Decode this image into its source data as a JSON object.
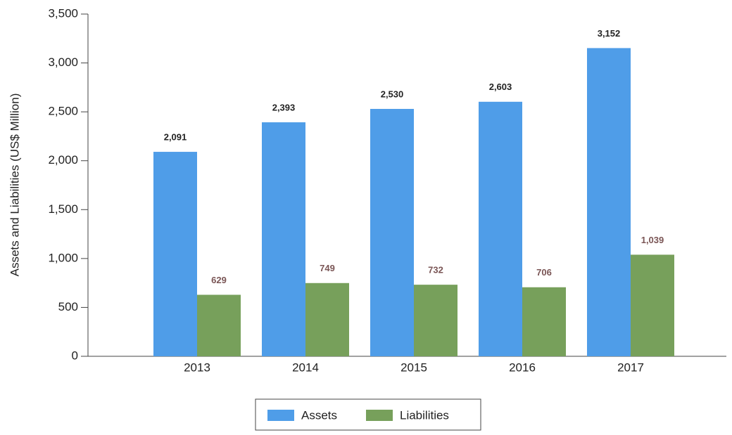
{
  "chart_data": {
    "type": "bar",
    "y_label": "Assets and Liabilities (US$ Million)",
    "categories": [
      "2013",
      "2014",
      "2015",
      "2016",
      "2017"
    ],
    "series": [
      {
        "name": "Assets",
        "color": "#4f9de8",
        "values": [
          2091,
          2393,
          2530,
          2603,
          3152
        ],
        "value_labels": [
          "2,091",
          "2,393",
          "2,530",
          "2,603",
          "3,152"
        ]
      },
      {
        "name": "Liabilities",
        "color": "#77a05b",
        "values": [
          629,
          749,
          732,
          706,
          1039
        ],
        "value_labels": [
          "629",
          "749",
          "732",
          "706",
          "1,039"
        ]
      }
    ],
    "ylim": [
      0,
      3500
    ],
    "yticks": [
      0,
      500,
      {
        "value": 1000,
        "label": "1,000"
      },
      {
        "value": 1500,
        "label": "1,500"
      },
      {
        "value": 2000,
        "label": "2,000"
      },
      {
        "value": 2500,
        "label": "2,500"
      },
      {
        "value": 3000,
        "label": "3,000"
      },
      {
        "value": 3500,
        "label": "3,500"
      }
    ],
    "grid": false,
    "legend": "bottom"
  }
}
